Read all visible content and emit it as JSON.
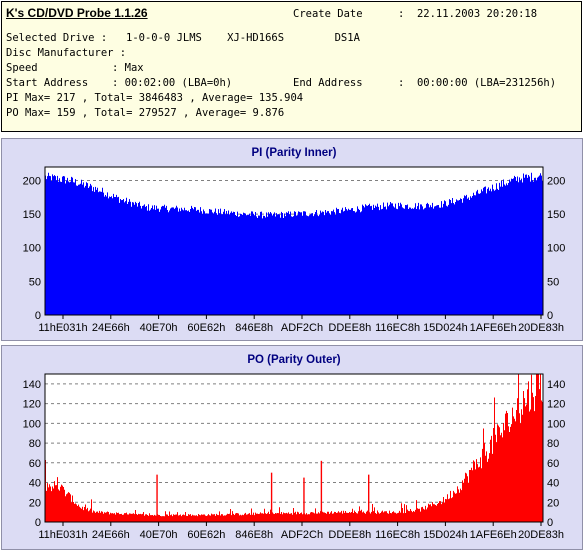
{
  "header": {
    "app_title": "K's CD/DVD Probe 1.1.26",
    "create_date_label": "Create Date",
    "create_date_value": ":  22.11.2003 20:20:18",
    "selected_drive_label": "Selected Drive :",
    "selected_drive_value": "1-0-0-0 JLMS    XJ-HD166S        DS1A",
    "disc_manufacturer_label": "Disc Manufacturer :",
    "speed_label": "Speed",
    "speed_value": ": Max",
    "start_address_label": "Start Address",
    "start_address_value": ": 00:02:00 (LBA=0h)",
    "end_address_label": "End Address",
    "end_address_value": ":  00:00:00 (LBA=231256h)",
    "pi_line": "PI Max= 217 , Total= 3846483 , Average= 135.904",
    "po_line": "PO Max= 159 , Total= 279527 , Average= 9.876"
  },
  "chart_data": [
    {
      "type": "bar",
      "title": "PI (Parity Inner)",
      "color": "#0000ff",
      "ylim": [
        0,
        220
      ],
      "yticks": [
        0,
        50,
        100,
        150,
        200
      ],
      "xtick_labels": [
        "11hE031h",
        "24E66h",
        "40E70h",
        "60E62h",
        "846E8h",
        "ADF2Ch",
        "DDEE8h",
        "116EC8h",
        "15D024h",
        "1AFE6Eh",
        "20DE83h"
      ],
      "grid": true,
      "profile": [
        [
          0,
          205
        ],
        [
          5,
          200
        ],
        [
          10,
          188
        ],
        [
          15,
          172
        ],
        [
          20,
          160
        ],
        [
          25,
          158
        ],
        [
          30,
          157
        ],
        [
          35,
          153
        ],
        [
          40,
          150
        ],
        [
          45,
          148
        ],
        [
          50,
          150
        ],
        [
          55,
          152
        ],
        [
          60,
          155
        ],
        [
          65,
          160
        ],
        [
          70,
          163
        ],
        [
          75,
          162
        ],
        [
          80,
          165
        ],
        [
          85,
          175
        ],
        [
          90,
          190
        ],
        [
          95,
          203
        ],
        [
          100,
          207
        ]
      ]
    },
    {
      "type": "bar",
      "title": "PO (Parity Outer)",
      "color": "#ff0000",
      "ylim": [
        0,
        150
      ],
      "yticks": [
        0,
        20,
        40,
        60,
        80,
        100,
        120,
        140
      ],
      "xtick_labels": [
        "11hE031h",
        "24E66h",
        "40E70h",
        "60E62h",
        "846E8h",
        "ADF2Ch",
        "DDEE8h",
        "116EC8h",
        "15D024h",
        "1AFE6Eh",
        "20DE83h"
      ],
      "grid": true,
      "profile": [
        [
          0,
          38
        ],
        [
          3,
          35
        ],
        [
          5,
          25
        ],
        [
          7,
          15
        ],
        [
          10,
          10
        ],
        [
          20,
          7
        ],
        [
          30,
          7
        ],
        [
          40,
          8
        ],
        [
          50,
          9
        ],
        [
          60,
          10
        ],
        [
          70,
          10
        ],
        [
          75,
          12
        ],
        [
          78,
          18
        ],
        [
          80,
          22
        ],
        [
          83,
          35
        ],
        [
          86,
          55
        ],
        [
          89,
          75
        ],
        [
          92,
          95
        ],
        [
          95,
          115
        ],
        [
          98,
          135
        ],
        [
          100,
          145
        ]
      ],
      "spikes": [
        [
          22.5,
          48
        ],
        [
          45.5,
          50
        ],
        [
          52.0,
          45
        ],
        [
          55.5,
          62
        ],
        [
          65.0,
          48
        ]
      ]
    }
  ]
}
